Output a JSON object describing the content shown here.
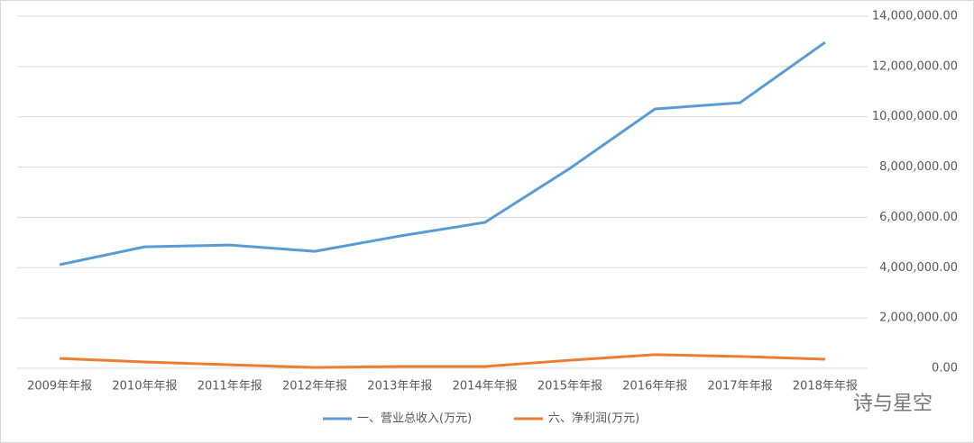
{
  "chart_data": {
    "type": "line",
    "categories": [
      "2009年年报",
      "2010年年报",
      "2011年年报",
      "2012年年报",
      "2013年年报",
      "2014年年报",
      "2015年年报",
      "2016年年报",
      "2017年年报",
      "2018年年报"
    ],
    "series": [
      {
        "name": "一、营业总收入(万元)",
        "color": "#5b9bd5",
        "values": [
          4120000,
          4830000,
          4900000,
          4650000,
          5260000,
          5800000,
          7950000,
          10310000,
          10560000,
          12960000
        ]
      },
      {
        "name": "六、净利润(万元)",
        "color": "#ed7d31",
        "values": [
          390000,
          250000,
          140000,
          30000,
          70000,
          70000,
          320000,
          540000,
          470000,
          360000
        ]
      }
    ],
    "ylim": [
      0,
      14000000
    ],
    "yticks": [
      {
        "value": 0,
        "label": "0.00"
      },
      {
        "value": 2000000,
        "label": "2,000,000.00"
      },
      {
        "value": 4000000,
        "label": "4,000,000.00"
      },
      {
        "value": 6000000,
        "label": "6,000,000.00"
      },
      {
        "value": 8000000,
        "label": "8,000,000.00"
      },
      {
        "value": 10000000,
        "label": "10,000,000.00"
      },
      {
        "value": 12000000,
        "label": "12,000,000.00"
      },
      {
        "value": 14000000,
        "label": "14,000,000.00"
      }
    ],
    "grid": true,
    "legend": "bottom",
    "watermark": "诗与星空"
  }
}
